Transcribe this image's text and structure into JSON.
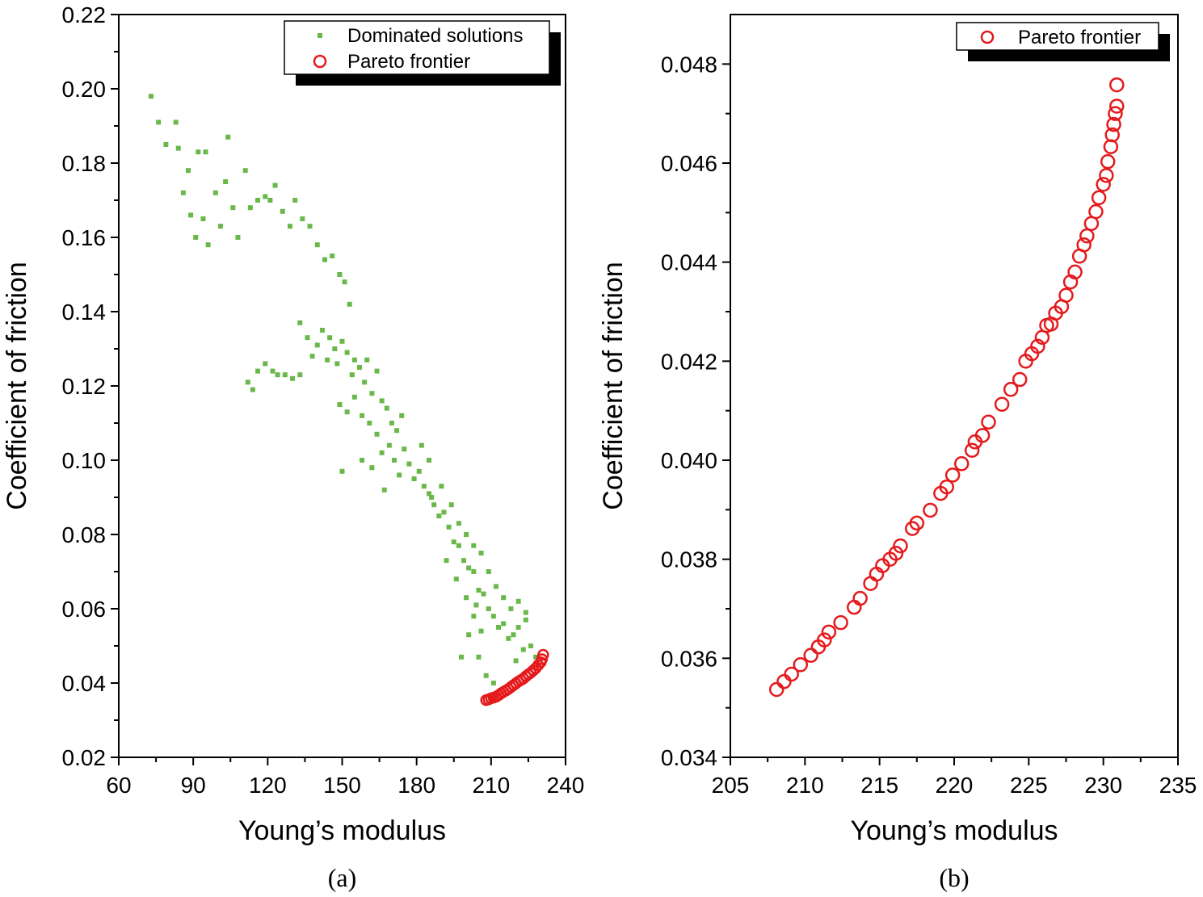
{
  "chart_data": [
    {
      "type": "scatter",
      "panel_label": "(a)",
      "xlabel": "Young’s modulus",
      "ylabel": "Coefficient of friction",
      "xlim": [
        60,
        240
      ],
      "ylim": [
        0.02,
        0.22
      ],
      "xticks": [
        "60",
        "90",
        "120",
        "150",
        "180",
        "210",
        "240"
      ],
      "yticks": [
        "0.02",
        "0.04",
        "0.06",
        "0.08",
        "0.10",
        "0.12",
        "0.14",
        "0.16",
        "0.18",
        "0.20",
        "0.22"
      ],
      "legend": {
        "placement": "top-right",
        "entries": [
          "Dominated solutions",
          "Pareto frontier"
        ]
      },
      "series": [
        {
          "name": "Dominated solutions",
          "marker": "square",
          "color": "#6ab84a",
          "points": [
            [
              73,
              0.198
            ],
            [
              76,
              0.191
            ],
            [
              79,
              0.185
            ],
            [
              83,
              0.191
            ],
            [
              84,
              0.184
            ],
            [
              88,
              0.178
            ],
            [
              92,
              0.183
            ],
            [
              95,
              0.183
            ],
            [
              104,
              0.187
            ],
            [
              86,
              0.172
            ],
            [
              89,
              0.166
            ],
            [
              91,
              0.16
            ],
            [
              94,
              0.165
            ],
            [
              96,
              0.158
            ],
            [
              99,
              0.172
            ],
            [
              101,
              0.163
            ],
            [
              103,
              0.175
            ],
            [
              106,
              0.168
            ],
            [
              108,
              0.16
            ],
            [
              111,
              0.178
            ],
            [
              113,
              0.168
            ],
            [
              116,
              0.17
            ],
            [
              119,
              0.171
            ],
            [
              121,
              0.17
            ],
            [
              123,
              0.174
            ],
            [
              126,
              0.167
            ],
            [
              129,
              0.163
            ],
            [
              131,
              0.17
            ],
            [
              134,
              0.165
            ],
            [
              137,
              0.163
            ],
            [
              140,
              0.158
            ],
            [
              143,
              0.154
            ],
            [
              146,
              0.155
            ],
            [
              149,
              0.15
            ],
            [
              151,
              0.148
            ],
            [
              153,
              0.142
            ],
            [
              112,
              0.121
            ],
            [
              114,
              0.119
            ],
            [
              116,
              0.124
            ],
            [
              119,
              0.126
            ],
            [
              122,
              0.124
            ],
            [
              124,
              0.123
            ],
            [
              127,
              0.123
            ],
            [
              130,
              0.122
            ],
            [
              133,
              0.123
            ],
            [
              133,
              0.137
            ],
            [
              136,
              0.133
            ],
            [
              138,
              0.128
            ],
            [
              140,
              0.131
            ],
            [
              142,
              0.135
            ],
            [
              144,
              0.127
            ],
            [
              145,
              0.133
            ],
            [
              147,
              0.13
            ],
            [
              148,
              0.126
            ],
            [
              150,
              0.132
            ],
            [
              152,
              0.129
            ],
            [
              154,
              0.123
            ],
            [
              155,
              0.127
            ],
            [
              157,
              0.125
            ],
            [
              159,
              0.121
            ],
            [
              160,
              0.127
            ],
            [
              162,
              0.118
            ],
            [
              164,
              0.124
            ],
            [
              166,
              0.116
            ],
            [
              168,
              0.114
            ],
            [
              170,
              0.11
            ],
            [
              172,
              0.108
            ],
            [
              174,
              0.112
            ],
            [
              149,
              0.115
            ],
            [
              152,
              0.113
            ],
            [
              155,
              0.117
            ],
            [
              158,
              0.112
            ],
            [
              161,
              0.11
            ],
            [
              164,
              0.107
            ],
            [
              166,
              0.102
            ],
            [
              169,
              0.104
            ],
            [
              171,
              0.1
            ],
            [
              173,
              0.096
            ],
            [
              150,
              0.097
            ],
            [
              158,
              0.1
            ],
            [
              162,
              0.098
            ],
            [
              167,
              0.092
            ],
            [
              175,
              0.103
            ],
            [
              177,
              0.099
            ],
            [
              179,
              0.095
            ],
            [
              181,
              0.097
            ],
            [
              183,
              0.093
            ],
            [
              185,
              0.091
            ],
            [
              187,
              0.088
            ],
            [
              189,
              0.085
            ],
            [
              191,
              0.086
            ],
            [
              193,
              0.082
            ],
            [
              195,
              0.078
            ],
            [
              197,
              0.077
            ],
            [
              199,
              0.073
            ],
            [
              201,
              0.071
            ],
            [
              203,
              0.07
            ],
            [
              205,
              0.065
            ],
            [
              207,
              0.064
            ],
            [
              209,
              0.06
            ],
            [
              211,
              0.058
            ],
            [
              213,
              0.055
            ],
            [
              215,
              0.056
            ],
            [
              217,
              0.052
            ],
            [
              219,
              0.053
            ],
            [
              221,
              0.055
            ],
            [
              224,
              0.057
            ],
            [
              226,
              0.05
            ],
            [
              228,
              0.047
            ],
            [
              223,
              0.049
            ],
            [
              220,
              0.046
            ],
            [
              185,
              0.1
            ],
            [
              190,
              0.093
            ],
            [
              194,
              0.088
            ],
            [
              197,
              0.083
            ],
            [
              200,
              0.08
            ],
            [
              203,
              0.077
            ],
            [
              206,
              0.075
            ],
            [
              209,
              0.07
            ],
            [
              212,
              0.066
            ],
            [
              215,
              0.063
            ],
            [
              218,
              0.06
            ],
            [
              221,
              0.062
            ],
            [
              224,
              0.059
            ],
            [
              203,
              0.058
            ],
            [
              206,
              0.054
            ],
            [
              182,
              0.104
            ],
            [
              186,
              0.09
            ],
            [
              192,
              0.073
            ],
            [
              196,
              0.068
            ],
            [
              200,
              0.063
            ],
            [
              204,
              0.061
            ],
            [
              201,
              0.053
            ],
            [
              198,
              0.047
            ],
            [
              205,
              0.047
            ],
            [
              208,
              0.042
            ],
            [
              211,
              0.04
            ]
          ]
        },
        {
          "name": "Pareto frontier",
          "marker": "open-circle",
          "color": "#e41a1c",
          "points": [
            [
              208,
              0.0354
            ],
            [
              209,
              0.0356
            ],
            [
              210,
              0.0359
            ],
            [
              211,
              0.0361
            ],
            [
              212,
              0.0363
            ],
            [
              213,
              0.0367
            ],
            [
              214,
              0.0372
            ],
            [
              215,
              0.0376
            ],
            [
              216,
              0.038
            ],
            [
              217,
              0.0384
            ],
            [
              218,
              0.0389
            ],
            [
              219,
              0.0394
            ],
            [
              220,
              0.0399
            ],
            [
              221,
              0.0404
            ],
            [
              222,
              0.0408
            ],
            [
              223,
              0.0412
            ],
            [
              224,
              0.0418
            ],
            [
              225,
              0.0423
            ],
            [
              226,
              0.0428
            ],
            [
              227,
              0.0434
            ],
            [
              228,
              0.044
            ],
            [
              229,
              0.0448
            ],
            [
              230,
              0.0456
            ],
            [
              230.5,
              0.0464
            ],
            [
              231,
              0.0476
            ]
          ]
        }
      ]
    },
    {
      "type": "scatter",
      "panel_label": "(b)",
      "xlabel": "Young’s modulus",
      "ylabel": "Coefficient of friction",
      "xlim": [
        205,
        235
      ],
      "ylim": [
        0.034,
        0.049
      ],
      "xticks": [
        "205",
        "210",
        "215",
        "220",
        "225",
        "230",
        "235"
      ],
      "yticks": [
        "0.034",
        "0.036",
        "0.038",
        "0.040",
        "0.042",
        "0.044",
        "0.046",
        "0.048"
      ],
      "legend": {
        "placement": "top-right",
        "entries": [
          "Pareto frontier"
        ]
      },
      "series": [
        {
          "name": "Pareto frontier",
          "marker": "open-circle",
          "color": "#e41a1c",
          "points": [
            [
              208.1,
              0.03537
            ],
            [
              208.6,
              0.03553
            ],
            [
              209.1,
              0.03568
            ],
            [
              209.7,
              0.03587
            ],
            [
              210.4,
              0.03606
            ],
            [
              210.9,
              0.03623
            ],
            [
              211.3,
              0.03637
            ],
            [
              211.6,
              0.03653
            ],
            [
              212.4,
              0.03672
            ],
            [
              213.3,
              0.03703
            ],
            [
              213.7,
              0.03721
            ],
            [
              214.4,
              0.03751
            ],
            [
              214.8,
              0.0377
            ],
            [
              215.2,
              0.03787
            ],
            [
              215.7,
              0.038
            ],
            [
              216.1,
              0.03812
            ],
            [
              216.4,
              0.03827
            ],
            [
              217.2,
              0.03862
            ],
            [
              217.5,
              0.03873
            ],
            [
              218.4,
              0.03899
            ],
            [
              219.1,
              0.03933
            ],
            [
              219.5,
              0.03946
            ],
            [
              219.9,
              0.0397
            ],
            [
              220.5,
              0.03993
            ],
            [
              221.2,
              0.0402
            ],
            [
              221.4,
              0.04037
            ],
            [
              221.9,
              0.0405
            ],
            [
              222.3,
              0.04077
            ],
            [
              223.2,
              0.04113
            ],
            [
              223.8,
              0.04143
            ],
            [
              224.4,
              0.04163
            ],
            [
              224.8,
              0.042
            ],
            [
              225.2,
              0.04215
            ],
            [
              225.6,
              0.0423
            ],
            [
              225.9,
              0.04248
            ],
            [
              226.2,
              0.04272
            ],
            [
              226.5,
              0.04275
            ],
            [
              226.8,
              0.04297
            ],
            [
              227.2,
              0.0431
            ],
            [
              227.5,
              0.04333
            ],
            [
              227.8,
              0.0436
            ],
            [
              228.1,
              0.0438
            ],
            [
              228.4,
              0.04412
            ],
            [
              228.7,
              0.04435
            ],
            [
              228.9,
              0.04453
            ],
            [
              229.2,
              0.04478
            ],
            [
              229.5,
              0.04502
            ],
            [
              229.7,
              0.0453
            ],
            [
              230.0,
              0.04557
            ],
            [
              230.2,
              0.04575
            ],
            [
              230.3,
              0.04603
            ],
            [
              230.5,
              0.04633
            ],
            [
              230.6,
              0.04657
            ],
            [
              230.7,
              0.04678
            ],
            [
              230.8,
              0.047
            ],
            [
              230.9,
              0.04715
            ],
            [
              230.9,
              0.04758
            ]
          ]
        }
      ]
    }
  ]
}
